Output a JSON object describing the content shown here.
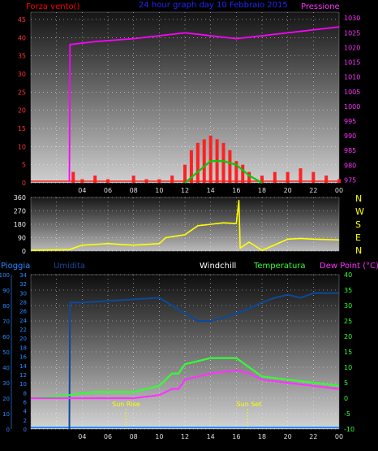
{
  "header": {
    "left": "Forza vento()",
    "title": "24 hour graph day  10 Febbraio 2015",
    "right": "Pressione"
  },
  "compass": [
    "N",
    "W",
    "S",
    "E",
    "N"
  ],
  "bottom_header": {
    "pioggia": "Pioggia",
    "umidita": "Umidita",
    "windchill": "Windchill",
    "temperatura": "Temperatura",
    "dewpoint": "Dew Point (°C)"
  },
  "annotations": {
    "sunrise": "Sun Rise",
    "sunset": "Sun Set"
  },
  "colors": {
    "wind": "#ff2020",
    "pressure": "#ff00ff",
    "direction": "#ffff00",
    "humidity": "#0a4a9a",
    "temperature": "#33ff33",
    "dewpoint": "#ff33ff",
    "rain": "#2a8aff",
    "header_title": "#2424ff",
    "gust": "#00cc00"
  },
  "chart_data": [
    {
      "type": "line",
      "panel": "wind-pressure",
      "x_ticks": [
        "04",
        "06",
        "08",
        "10",
        "12",
        "14",
        "16",
        "18",
        "20",
        "22",
        "00"
      ],
      "y_left_ticks": [
        "0",
        "5",
        "10",
        "15",
        "20",
        "25",
        "30",
        "35",
        "40",
        "45"
      ],
      "y_right_ticks": [
        "975",
        "980",
        "985",
        "990",
        "995",
        "1000",
        "1005",
        "1010",
        "1015",
        "1020",
        "1025",
        "1030"
      ],
      "ylim_left": [
        0,
        47
      ],
      "ylim_right": [
        974,
        1032
      ],
      "series": [
        {
          "key": "pressure",
          "x": [
            3,
            3.05,
            5,
            8,
            10,
            12,
            14,
            16,
            18,
            20,
            22,
            24
          ],
          "y": [
            0,
            1021,
            1022,
            1023,
            1024,
            1025,
            1024,
            1023,
            1024,
            1025,
            1026,
            1027
          ]
        },
        {
          "key": "gust",
          "x": [
            12,
            13,
            14,
            15,
            16,
            17,
            18
          ],
          "y": [
            0,
            3,
            6,
            6,
            5,
            2,
            0
          ]
        }
      ],
      "wind_bars": {
        "x": [
          0,
          3,
          3.3,
          4,
          5,
          6,
          7,
          8,
          9,
          10,
          11,
          12,
          12.5,
          13,
          13.5,
          14,
          14.5,
          15,
          15.5,
          16,
          16.5,
          17,
          18,
          19,
          20,
          21,
          22,
          23,
          24
        ],
        "y": [
          0,
          0,
          3,
          1,
          2,
          1,
          0,
          2,
          1,
          1,
          2,
          5,
          9,
          11,
          12,
          13,
          12,
          11,
          9,
          6,
          5,
          3,
          2,
          3,
          3,
          4,
          3,
          2,
          1
        ]
      }
    },
    {
      "type": "line",
      "panel": "wind-direction",
      "y_ticks": [
        "0",
        "90",
        "180",
        "270",
        "360"
      ],
      "ylim": [
        0,
        360
      ],
      "series": [
        {
          "key": "direction",
          "x": [
            0,
            3,
            4,
            6,
            8,
            10,
            10.5,
            12,
            13,
            14,
            15,
            16,
            16.2,
            16.3,
            17,
            18,
            20,
            21,
            22,
            24
          ],
          "y": [
            5,
            10,
            40,
            50,
            40,
            50,
            90,
            110,
            170,
            180,
            190,
            185,
            340,
            20,
            60,
            5,
            80,
            85,
            80,
            75
          ]
        }
      ]
    },
    {
      "type": "line",
      "panel": "humidity-temperature",
      "y_left_outer_ticks": [
        "0",
        "10",
        "20",
        "30",
        "40",
        "50",
        "60",
        "70",
        "80",
        "90",
        "100"
      ],
      "y_left_inner_ticks": [
        "0",
        "2",
        "4",
        "6",
        "8",
        "10",
        "12",
        "14",
        "16",
        "18",
        "20",
        "22",
        "24",
        "26",
        "28",
        "30",
        "32",
        "34"
      ],
      "y_right_ticks": [
        "-10",
        "-5",
        "0",
        "5",
        "10",
        "15",
        "20",
        "25",
        "30",
        "35",
        "40"
      ],
      "ylim_humidity": [
        0,
        100
      ],
      "ylim_temperature": [
        -10,
        40
      ],
      "series": [
        {
          "key": "humidity",
          "x": [
            3,
            3.05,
            4,
            6,
            8,
            10,
            11,
            12,
            13,
            14,
            15,
            16,
            17,
            18,
            19,
            20,
            21,
            22,
            24
          ],
          "y": [
            0,
            82,
            82,
            83,
            84,
            85,
            80,
            75,
            70,
            70,
            72,
            75,
            78,
            82,
            85,
            87,
            85,
            88,
            88
          ]
        },
        {
          "key": "temperature",
          "x": [
            0,
            3,
            5,
            8,
            10,
            11,
            11.5,
            12,
            14,
            16,
            17,
            18,
            20,
            22,
            24
          ],
          "y": [
            0,
            1,
            2,
            2,
            4,
            8,
            8,
            11,
            13,
            13,
            10,
            7,
            6,
            5,
            4
          ]
        },
        {
          "key": "dewpoint",
          "x": [
            0,
            3,
            5,
            8,
            10,
            11,
            11.5,
            12,
            14,
            16,
            17,
            18,
            20,
            22,
            24
          ],
          "y": [
            0,
            0,
            0,
            0,
            1,
            3,
            3,
            6,
            8,
            9,
            8,
            6,
            5,
            4,
            3
          ]
        }
      ],
      "rain_x": [
        0,
        24
      ],
      "sunrise_x": 7.4,
      "sunset_x": 16.9
    }
  ]
}
